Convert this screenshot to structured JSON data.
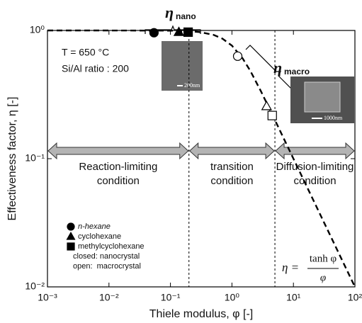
{
  "chart_data": {
    "type": "line",
    "x_label": "Thiele modulus, φ [-]",
    "y_label": "Effectiveness factor, η [-]",
    "log_x": true,
    "log_y": true,
    "xlim": [
      0.001,
      100
    ],
    "ylim": [
      0.01,
      1
    ],
    "xticks": [
      {
        "value": 0.001,
        "label": "10⁻³"
      },
      {
        "value": 0.01,
        "label": "10⁻²"
      },
      {
        "value": 0.1,
        "label": "10⁻¹"
      },
      {
        "value": 1,
        "label": "10⁰"
      },
      {
        "value": 10,
        "label": "10¹"
      },
      {
        "value": 100,
        "label": "10²"
      }
    ],
    "yticks": [
      {
        "value": 0.01,
        "label": "10⁻²"
      },
      {
        "value": 0.1,
        "label": "10⁻¹"
      },
      {
        "value": 1,
        "label": "10⁰"
      }
    ],
    "series": [
      {
        "marker": "dashed-line",
        "color": "#000000",
        "x": [
          0.001,
          0.01,
          0.1,
          0.2,
          0.3,
          0.5,
          0.7,
          1,
          1.5,
          2,
          3,
          5,
          7,
          10,
          20,
          50,
          100
        ],
        "values": [
          1.0,
          1.0,
          0.9967,
          0.9869,
          0.971,
          0.9242,
          0.8634,
          0.7616,
          0.6034,
          0.482,
          0.3317,
          0.2,
          0.1429,
          0.1,
          0.05,
          0.02,
          0.01
        ]
      },
      {
        "name": "n-hexane",
        "marker": "circle",
        "color": "#000000",
        "x": [
          0.054,
          1.24
        ],
        "values": [
          0.96,
          0.63
        ],
        "filled": [
          true,
          false
        ]
      },
      {
        "name": "cyclohexane",
        "marker": "triangle",
        "color": "#000000",
        "x": [
          0.137,
          3.66
        ],
        "values": [
          0.97,
          0.256
        ],
        "filled": [
          true,
          false
        ]
      },
      {
        "name": "methylcyclohexane",
        "marker": "square",
        "color": "#000000",
        "x": [
          0.194,
          4.52
        ],
        "values": [
          0.97,
          0.217
        ],
        "filled": [
          true,
          false
        ]
      }
    ],
    "legend_notes": [
      "closed: nanocrystal",
      "open:  macrocrystal"
    ],
    "boundaries": [
      0.2,
      5
    ],
    "regions": [
      {
        "lines": [
          "Reaction-limiting",
          "condition"
        ]
      },
      {
        "lines": [
          "transition",
          "condition"
        ]
      },
      {
        "lines": [
          "Diffusion-limiting",
          "condition"
        ]
      }
    ],
    "annotations": {
      "temperature": "T = 650 °C",
      "ratio": "Si/Al ratio : 200",
      "eta_nano": {
        "symbol": "η",
        "sub": "nano"
      },
      "eta_macro": {
        "symbol": "η",
        "sub": "macro"
      },
      "scale_nano": "200nm",
      "scale_macro": "1000nm",
      "equation": {
        "lhs": "η =",
        "numerator": "tanh φ",
        "denominator": "φ"
      }
    }
  }
}
